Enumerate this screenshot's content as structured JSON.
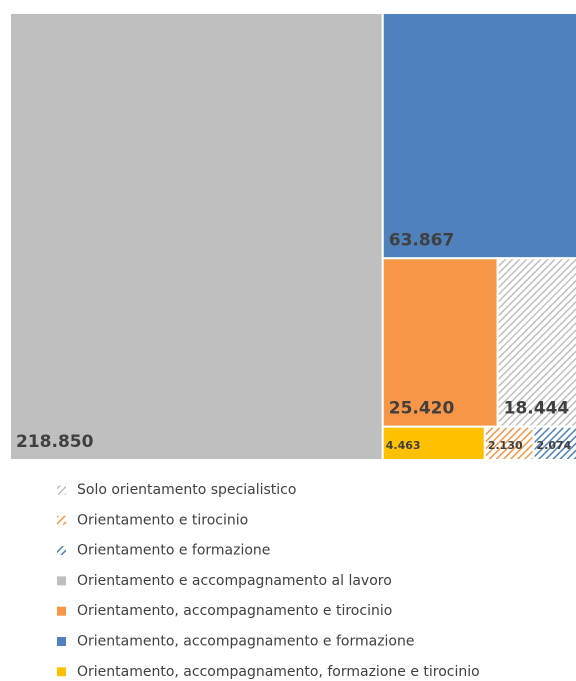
{
  "chart_data": {
    "type": "treemap",
    "categories": [
      "Solo orientamento specialistico",
      "Orientamento e tirocinio",
      "Orientamento e formazione",
      "Orientamento e accompagnamento al lavoro",
      "Orientamento, accompagnamento e tirocinio",
      "Orientamento, accompagnamento e formazione",
      "Orientamento, accompagnamento, formazione e tirocinio"
    ],
    "values": [
      18444,
      2130,
      2074,
      218850,
      25420,
      63867,
      4463
    ],
    "value_labels": [
      "18.444",
      "2.130",
      "2.074",
      "218.850",
      "25.420",
      "63.867",
      "4.463"
    ],
    "colors": [
      "#bfbfbf",
      "#f79646",
      "#4f81bd",
      "#bfbfbf",
      "#f79646",
      "#4f81bd",
      "#ffc000"
    ],
    "hatched": [
      true,
      true,
      true,
      false,
      false,
      false,
      false
    ],
    "legend": "bottom"
  }
}
